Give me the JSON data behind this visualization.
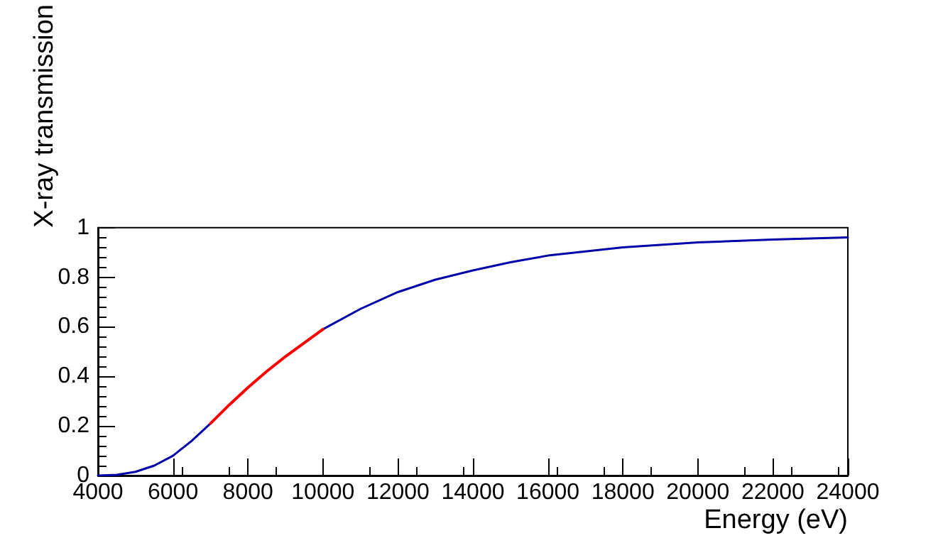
{
  "chart_data": {
    "type": "line",
    "xlabel": "Energy (eV)",
    "ylabel": "X-ray transmission",
    "xlim": [
      4000,
      24000
    ],
    "xticks": [
      4000,
      6000,
      8000,
      10000,
      12000,
      14000,
      16000,
      18000,
      20000,
      22000,
      24000
    ],
    "ylim": [
      0,
      1
    ],
    "yticks": [
      0,
      0.2,
      0.4,
      0.6,
      0.8,
      1
    ],
    "grid": false,
    "marker": "none",
    "line_style": "solid",
    "series": [
      {
        "color": "#0000aa",
        "x": [
          4000,
          4500,
          5000,
          5500,
          6000,
          6500,
          7000,
          8500,
          10000,
          11000,
          12000,
          13000,
          14000,
          15000,
          16000,
          18000,
          20000,
          22000,
          24000
        ],
        "values": [
          0,
          0.003,
          0.015,
          0.04,
          0.08,
          0.14,
          0.21,
          null,
          0.59,
          0.672,
          0.74,
          0.79,
          0.827,
          0.86,
          0.887,
          0.92,
          0.94,
          0.952,
          0.96
        ]
      },
      {
        "color": "#ff0000",
        "x": [
          7000,
          7500,
          8000,
          8500,
          9000,
          9500,
          10000
        ],
        "values": [
          0.21,
          0.285,
          0.355,
          0.42,
          0.48,
          0.535,
          0.59
        ]
      }
    ]
  }
}
